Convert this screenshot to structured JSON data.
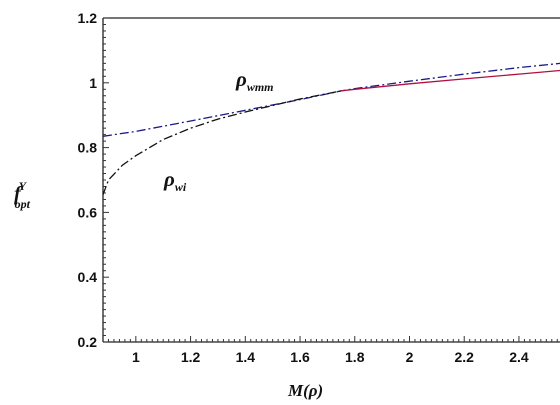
{
  "chart_data": {
    "type": "line",
    "title": "",
    "xlabel": "M(ρ)",
    "ylabel": {
      "main": "f",
      "sup": "Y",
      "sub": "opt"
    },
    "xlim": [
      0.88,
      2.55
    ],
    "ylim": [
      0.2,
      1.2
    ],
    "x_ticks": [
      1,
      1.2,
      1.4,
      1.6,
      1.8,
      2,
      2.2,
      2.4
    ],
    "x_tick_labels": [
      "1",
      "1.2",
      "1.4",
      "1.6",
      "1.8",
      "2",
      "2.2",
      "2.4"
    ],
    "y_ticks": [
      0.2,
      0.4,
      0.6,
      0.8,
      1,
      1.2
    ],
    "y_tick_labels": [
      "0.2",
      "0.4",
      "0.6",
      "0.8",
      "1",
      "1.2"
    ],
    "grid": false,
    "series": [
      {
        "name": {
          "main": "ρ",
          "sub": "wmm"
        },
        "color": "#1a1a8c",
        "dash": "dash-dot",
        "x": [
          0.88,
          1.0,
          1.2,
          1.4,
          1.6,
          1.75,
          1.8,
          2.0,
          2.2,
          2.4,
          2.55
        ],
        "values": [
          0.835,
          0.85,
          0.882,
          0.915,
          0.948,
          0.975,
          0.982,
          1.005,
          1.027,
          1.047,
          1.06
        ]
      },
      {
        "name": {
          "main": "ρ",
          "sub": "wi"
        },
        "color": "#111111",
        "dash": "dash-dot",
        "x": [
          0.88,
          0.9,
          0.95,
          1.0,
          1.1,
          1.2,
          1.3,
          1.4,
          1.5,
          1.6,
          1.75
        ],
        "values": [
          0.655,
          0.7,
          0.745,
          0.775,
          0.825,
          0.86,
          0.888,
          0.91,
          0.93,
          0.95,
          0.975
        ]
      },
      {
        "name": "",
        "color": "#b01040",
        "dash": "solid",
        "x": [
          1.75,
          1.8,
          2.0,
          2.2,
          2.4,
          2.55
        ],
        "values": [
          0.975,
          0.98,
          0.997,
          1.012,
          1.027,
          1.038
        ]
      }
    ]
  }
}
